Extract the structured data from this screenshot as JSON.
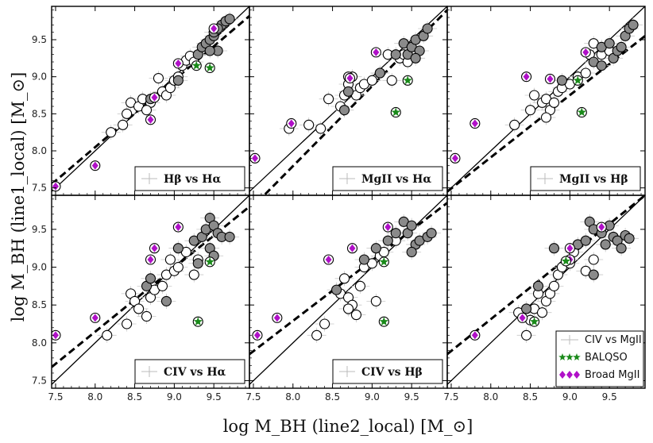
{
  "chart_data": {
    "type": "scatter",
    "xlabel": "log M_BH (line2_local) [M_⊙]",
    "ylabel": "log M_BH (line1_local) [M_⊙]",
    "xlim": [
      7.45,
      9.95
    ],
    "ylim": [
      7.4,
      9.95
    ],
    "x_ticks": [
      "7.5",
      "8.0",
      "8.5",
      "9.0",
      "9.5"
    ],
    "y_ticks": [
      "7.5",
      "8.0",
      "8.5",
      "9.0",
      "9.5"
    ],
    "grid": false,
    "shared_legend": {
      "entries": [
        "CIV vs MgII",
        "BALQSO",
        "Broad MgII"
      ],
      "placement": "lower-right of bottom-right panel"
    },
    "panels": [
      {
        "label": "Hβ vs Hα",
        "fit": [
          [
            7.45,
            7.55
          ],
          [
            9.95,
            9.82
          ]
        ],
        "open": [
          [
            8.2,
            8.25
          ],
          [
            8.4,
            8.5
          ],
          [
            8.45,
            8.65
          ],
          [
            8.35,
            8.35
          ],
          [
            8.55,
            8.6
          ],
          [
            8.6,
            8.7
          ],
          [
            8.7,
            8.65
          ],
          [
            8.8,
            8.98
          ],
          [
            8.85,
            8.8
          ],
          [
            8.9,
            8.75
          ],
          [
            8.95,
            8.85
          ],
          [
            9.0,
            8.95
          ],
          [
            9.05,
            9.0
          ],
          [
            9.1,
            9.15
          ],
          [
            9.15,
            9.22
          ],
          [
            9.2,
            9.28
          ],
          [
            9.25,
            9.2
          ],
          [
            8.65,
            8.55
          ]
        ],
        "filled": [
          [
            8.7,
            8.7
          ],
          [
            9.3,
            9.3
          ],
          [
            9.35,
            9.4
          ],
          [
            9.4,
            9.45
          ],
          [
            9.45,
            9.5
          ],
          [
            9.5,
            9.55
          ],
          [
            9.55,
            9.35
          ],
          [
            9.45,
            9.35
          ],
          [
            9.6,
            9.7
          ],
          [
            9.65,
            9.75
          ],
          [
            9.7,
            9.78
          ],
          [
            9.5,
            9.6
          ],
          [
            9.55,
            9.65
          ],
          [
            9.05,
            8.95
          ]
        ],
        "balqso": [
          [
            9.28,
            9.15
          ],
          [
            9.45,
            9.12
          ]
        ],
        "broad_mgii": [
          [
            7.5,
            7.52
          ],
          [
            8.0,
            7.8
          ],
          [
            8.7,
            8.42
          ],
          [
            8.75,
            8.72
          ],
          [
            9.05,
            9.18
          ],
          [
            9.5,
            9.65
          ]
        ]
      },
      {
        "label": "MgII vs Hα",
        "fit": [
          [
            7.45,
            7.2
          ],
          [
            9.95,
            9.9
          ]
        ],
        "open": [
          [
            7.95,
            8.3
          ],
          [
            8.2,
            8.35
          ],
          [
            8.35,
            8.3
          ],
          [
            8.45,
            8.7
          ],
          [
            8.6,
            8.6
          ],
          [
            8.65,
            8.75
          ],
          [
            8.7,
            8.9
          ],
          [
            8.8,
            8.75
          ],
          [
            8.85,
            8.85
          ],
          [
            8.9,
            8.9
          ],
          [
            9.0,
            8.95
          ],
          [
            9.1,
            9.05
          ],
          [
            9.2,
            9.3
          ],
          [
            9.25,
            8.95
          ],
          [
            9.35,
            9.25
          ],
          [
            9.4,
            9.3
          ],
          [
            9.45,
            9.2
          ],
          [
            8.75,
            9.0
          ]
        ],
        "filled": [
          [
            8.65,
            8.55
          ],
          [
            8.7,
            8.8
          ],
          [
            9.3,
            9.3
          ],
          [
            9.4,
            9.45
          ],
          [
            9.45,
            9.3
          ],
          [
            9.5,
            9.4
          ],
          [
            9.55,
            9.5
          ],
          [
            9.6,
            9.35
          ],
          [
            9.65,
            9.55
          ],
          [
            9.7,
            9.65
          ],
          [
            9.55,
            9.25
          ],
          [
            9.1,
            9.05
          ]
        ],
        "balqso": [
          [
            9.3,
            8.52
          ],
          [
            9.45,
            8.95
          ]
        ],
        "broad_mgii": [
          [
            7.52,
            7.9
          ],
          [
            7.98,
            8.37
          ],
          [
            8.7,
            9.0
          ],
          [
            8.72,
            8.98
          ],
          [
            9.05,
            9.33
          ]
        ]
      },
      {
        "label": "MgII vs Hβ",
        "fit": [
          [
            7.45,
            7.45
          ],
          [
            9.95,
            9.55
          ]
        ],
        "open": [
          [
            8.3,
            8.35
          ],
          [
            8.5,
            8.55
          ],
          [
            8.55,
            8.75
          ],
          [
            8.65,
            8.65
          ],
          [
            8.7,
            8.7
          ],
          [
            8.75,
            8.55
          ],
          [
            8.8,
            8.65
          ],
          [
            8.85,
            8.8
          ],
          [
            8.9,
            8.85
          ],
          [
            9.0,
            8.9
          ],
          [
            9.1,
            9.0
          ],
          [
            9.2,
            9.05
          ],
          [
            9.3,
            9.45
          ],
          [
            9.4,
            9.3
          ],
          [
            9.5,
            9.35
          ],
          [
            8.7,
            8.45
          ],
          [
            9.25,
            9.3
          ]
        ],
        "filled": [
          [
            8.9,
            8.95
          ],
          [
            9.3,
            9.2
          ],
          [
            9.4,
            9.4
          ],
          [
            9.5,
            9.45
          ],
          [
            9.55,
            9.25
          ],
          [
            9.6,
            9.35
          ],
          [
            9.65,
            9.4
          ],
          [
            9.7,
            9.55
          ],
          [
            9.75,
            9.65
          ],
          [
            9.8,
            9.7
          ],
          [
            9.4,
            9.15
          ]
        ],
        "balqso": [
          [
            9.15,
            8.52
          ],
          [
            9.1,
            8.95
          ]
        ],
        "broad_mgii": [
          [
            7.55,
            7.9
          ],
          [
            7.8,
            8.37
          ],
          [
            8.45,
            9.0
          ],
          [
            8.75,
            8.97
          ],
          [
            9.2,
            9.33
          ]
        ]
      },
      {
        "label": "CIV vs Hα",
        "fit": [
          [
            7.45,
            7.68
          ],
          [
            9.95,
            9.8
          ]
        ],
        "open": [
          [
            8.15,
            8.1
          ],
          [
            8.4,
            8.25
          ],
          [
            8.45,
            8.65
          ],
          [
            8.5,
            8.55
          ],
          [
            8.55,
            8.45
          ],
          [
            8.65,
            8.35
          ],
          [
            8.7,
            8.6
          ],
          [
            8.75,
            8.7
          ],
          [
            8.85,
            8.75
          ],
          [
            8.9,
            8.9
          ],
          [
            9.0,
            8.95
          ],
          [
            9.05,
            9.0
          ],
          [
            9.15,
            9.2
          ],
          [
            9.25,
            8.9
          ],
          [
            9.3,
            9.1
          ],
          [
            8.95,
            9.1
          ]
        ],
        "filled": [
          [
            8.65,
            8.75
          ],
          [
            8.7,
            8.85
          ],
          [
            8.9,
            8.55
          ],
          [
            9.25,
            9.35
          ],
          [
            9.35,
            9.4
          ],
          [
            9.4,
            9.5
          ],
          [
            9.45,
            9.65
          ],
          [
            9.5,
            9.55
          ],
          [
            9.55,
            9.45
          ],
          [
            9.6,
            9.4
          ],
          [
            9.7,
            9.4
          ],
          [
            9.45,
            9.25
          ],
          [
            9.5,
            9.15
          ],
          [
            9.05,
            9.25
          ],
          [
            9.3,
            9.05
          ]
        ],
        "balqso": [
          [
            9.45,
            9.07
          ],
          [
            9.3,
            8.28
          ]
        ],
        "broad_mgii": [
          [
            7.5,
            8.1
          ],
          [
            8.0,
            8.33
          ],
          [
            8.7,
            9.1
          ],
          [
            8.75,
            9.25
          ],
          [
            9.05,
            9.53
          ]
        ]
      },
      {
        "label": "CIV vs Hβ",
        "fit": [
          [
            7.45,
            7.85
          ],
          [
            9.95,
            9.85
          ]
        ],
        "open": [
          [
            8.3,
            8.1
          ],
          [
            8.4,
            8.25
          ],
          [
            8.6,
            8.65
          ],
          [
            8.65,
            8.85
          ],
          [
            8.7,
            8.6
          ],
          [
            8.75,
            8.5
          ],
          [
            8.8,
            8.37
          ],
          [
            8.85,
            8.75
          ],
          [
            8.9,
            9.0
          ],
          [
            9.0,
            9.05
          ],
          [
            9.1,
            9.15
          ],
          [
            9.15,
            9.2
          ],
          [
            9.3,
            9.35
          ],
          [
            8.7,
            8.45
          ],
          [
            9.05,
            8.55
          ]
        ],
        "filled": [
          [
            8.55,
            8.7
          ],
          [
            8.9,
            9.1
          ],
          [
            9.05,
            9.25
          ],
          [
            9.2,
            9.35
          ],
          [
            9.3,
            9.45
          ],
          [
            9.4,
            9.6
          ],
          [
            9.45,
            9.45
          ],
          [
            9.5,
            9.55
          ],
          [
            9.55,
            9.3
          ],
          [
            9.6,
            9.35
          ],
          [
            9.7,
            9.4
          ],
          [
            9.75,
            9.45
          ],
          [
            9.5,
            9.2
          ]
        ],
        "balqso": [
          [
            9.15,
            9.07
          ],
          [
            9.15,
            8.28
          ]
        ],
        "broad_mgii": [
          [
            7.55,
            8.1
          ],
          [
            7.8,
            8.33
          ],
          [
            8.45,
            9.1
          ],
          [
            8.75,
            9.25
          ],
          [
            9.2,
            9.53
          ]
        ]
      },
      {
        "label": "CIV vs MgII",
        "fit": [
          [
            7.45,
            7.85
          ],
          [
            9.95,
            9.95
          ]
        ],
        "open": [
          [
            8.35,
            8.4
          ],
          [
            8.5,
            8.3
          ],
          [
            8.55,
            8.45
          ],
          [
            8.6,
            8.65
          ],
          [
            8.65,
            8.4
          ],
          [
            8.7,
            8.55
          ],
          [
            8.75,
            8.65
          ],
          [
            8.8,
            8.75
          ],
          [
            8.85,
            8.9
          ],
          [
            8.9,
            9.0
          ],
          [
            9.0,
            9.05
          ],
          [
            9.05,
            9.2
          ],
          [
            9.2,
            8.95
          ],
          [
            9.3,
            9.1
          ],
          [
            8.45,
            8.1
          ]
        ],
        "filled": [
          [
            8.45,
            8.45
          ],
          [
            8.6,
            8.75
          ],
          [
            8.8,
            9.25
          ],
          [
            9.0,
            9.1
          ],
          [
            9.1,
            9.3
          ],
          [
            9.2,
            9.35
          ],
          [
            9.25,
            9.6
          ],
          [
            9.3,
            9.5
          ],
          [
            9.4,
            9.45
          ],
          [
            9.45,
            9.3
          ],
          [
            9.5,
            9.55
          ],
          [
            9.55,
            9.4
          ],
          [
            9.6,
            9.35
          ],
          [
            9.65,
            9.25
          ],
          [
            9.7,
            9.42
          ],
          [
            9.75,
            9.38
          ],
          [
            9.3,
            8.9
          ]
        ],
        "balqso": [
          [
            8.95,
            9.08
          ],
          [
            8.55,
            8.28
          ]
        ],
        "broad_mgii": [
          [
            7.8,
            8.1
          ],
          [
            8.4,
            8.33
          ],
          [
            9.0,
            9.1
          ],
          [
            9.0,
            9.25
          ],
          [
            9.4,
            9.53
          ]
        ]
      }
    ]
  }
}
